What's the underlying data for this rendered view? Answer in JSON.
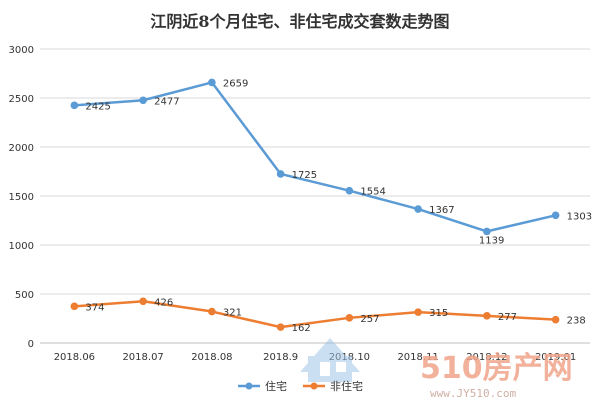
{
  "chart_data": {
    "type": "line",
    "title": "江阴近8个月住宅、非住宅成交套数走势图",
    "xlabel": "",
    "ylabel": "",
    "categories": [
      "2018.06",
      "2018.07",
      "2018.08",
      "2018.9",
      "2018.10",
      "2018.11",
      "2018.12",
      "2019.01"
    ],
    "ylim": [
      0,
      3000
    ],
    "yticks": [
      0,
      500,
      1000,
      1500,
      2000,
      2500,
      3000
    ],
    "grid": true,
    "legend_position": "bottom",
    "series": [
      {
        "name": "住宅",
        "color": "#5b9bd5",
        "values": [
          2425,
          2477,
          2659,
          1725,
          1554,
          1367,
          1139,
          1303
        ]
      },
      {
        "name": "非住宅",
        "color": "#ed7d31",
        "values": [
          374,
          426,
          321,
          162,
          257,
          315,
          277,
          238
        ]
      }
    ]
  },
  "watermark": {
    "brand": "510房产网",
    "url": "www.JY510.com"
  }
}
